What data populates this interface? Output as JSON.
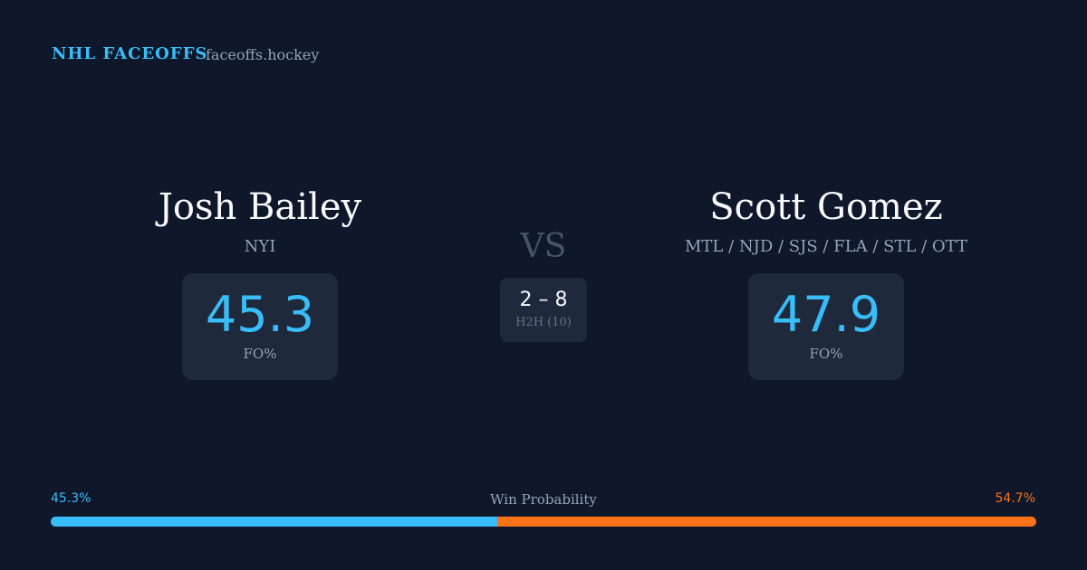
{
  "header": {
    "brand": "NHL FACEOFFS",
    "site": "faceoffs.hockey"
  },
  "players": [
    {
      "name": "Josh Bailey",
      "teams": "NYI",
      "fo": 45.3,
      "fo_label": "FO%"
    },
    {
      "name": "Scott Gomez",
      "teams": "MTL / NJD / SJS / FLA / STL / OTT",
      "fo": 47.9,
      "fo_label": "FO%"
    }
  ],
  "vs": "VS",
  "h2h": {
    "score": "2 – 8",
    "label": "H2H (10)"
  },
  "win_probability": {
    "title": "Win Probability",
    "left": {
      "value": 45.3,
      "label": "45.3%",
      "color": "#38bdf8"
    },
    "right": {
      "value": 54.7,
      "label": "54.7%",
      "color": "#f97316"
    }
  }
}
